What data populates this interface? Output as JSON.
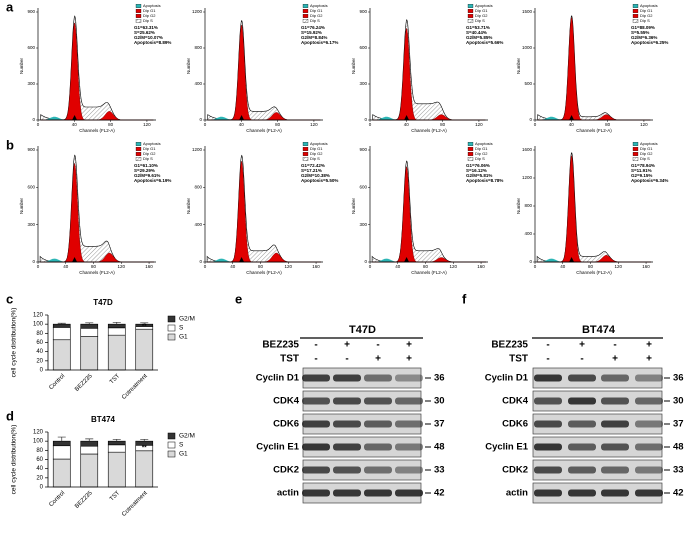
{
  "flow": {
    "xlabel": "Channels (FL2-A)",
    "ylabel": "Number",
    "legend": [
      "Apoptosis",
      "Dip G1",
      "Dip G2",
      "Dip S"
    ],
    "rows": [
      {
        "label": "a",
        "xlim": [
          0,
          130
        ],
        "xticks": [
          0,
          40,
          80,
          120
        ],
        "plots": [
          {
            "stats": [
              "G1=63.31%",
              "S=25.62%",
              "G2/M=10.07%",
              "Apoptosis=8.89%"
            ],
            "ylim": [
              0,
              900
            ],
            "yticks": [
              0,
              300,
              600,
              900
            ]
          },
          {
            "stats": [
              "G1=76.24%",
              "S=15.92%",
              "G2/M=8.84%",
              "Apoptosis=6.17%"
            ],
            "ylim": [
              0,
              1200
            ],
            "yticks": [
              0,
              400,
              800,
              1200
            ]
          },
          {
            "stats": [
              "G1=53.71%",
              "S=40.44%",
              "G2/M=5.85%",
              "Apoptosis=5.66%"
            ],
            "ylim": [
              0,
              900
            ],
            "yticks": [
              0,
              300,
              600,
              900
            ]
          },
          {
            "stats": [
              "G1=88.09%",
              "S=5.55%",
              "G2/M=6.36%",
              "Apoptosis=6.25%"
            ],
            "ylim": [
              0,
              1500
            ],
            "yticks": [
              0,
              500,
              1000,
              1500
            ]
          }
        ]
      },
      {
        "label": "b",
        "xlim": [
          0,
          170
        ],
        "xticks": [
          0,
          40,
          80,
          120,
          160
        ],
        "plots": [
          {
            "stats": [
              "G1=61.10%",
              "S=29.29%",
              "G2/M=9.61%",
              "Apoptosis=6.19%"
            ],
            "ylim": [
              0,
              900
            ],
            "yticks": [
              0,
              300,
              600,
              900
            ]
          },
          {
            "stats": [
              "G1=72.42%",
              "S=17.21%",
              "G2/M=10.38%",
              "Apoptosis=5.50%"
            ],
            "ylim": [
              0,
              1200
            ],
            "yticks": [
              0,
              400,
              800,
              1200
            ]
          },
          {
            "stats": [
              "G1=76.06%",
              "S=16.12%",
              "G2/M=5.81%",
              "Apoptosis=8.78%"
            ],
            "ylim": [
              0,
              900
            ],
            "yticks": [
              0,
              300,
              600,
              900
            ]
          },
          {
            "stats": [
              "G1=78.94%",
              "S=11.91%",
              "G2=9.15%",
              "Apoptosis=6.34%"
            ],
            "ylim": [
              0,
              1600
            ],
            "yticks": [
              0,
              400,
              800,
              1200,
              1600
            ]
          }
        ]
      }
    ]
  },
  "chart_data": [
    {
      "type": "bar",
      "label": "c",
      "title": "T47D",
      "ylabel": "cell cycle distribution(%)",
      "categories": [
        "Control",
        "BEZ235",
        "TST",
        "Cotreatment"
      ],
      "series": [
        {
          "name": "G1",
          "color": "#d9d9d9",
          "values": [
            66,
            73,
            76,
            89
          ],
          "errors": [
            2,
            4,
            8,
            2
          ]
        },
        {
          "name": "S",
          "color": "#ffffff",
          "values": [
            27,
            18,
            16,
            6
          ],
          "errors": [
            2,
            3,
            5,
            2
          ]
        },
        {
          "name": "G2/M",
          "color": "#333333",
          "values": [
            7,
            9,
            8,
            5
          ],
          "errors": [
            2,
            3,
            4,
            3
          ]
        }
      ],
      "annotation": "**",
      "ylim": [
        0,
        120
      ],
      "yticks": [
        0,
        20,
        40,
        60,
        80,
        100,
        120
      ]
    },
    {
      "type": "bar",
      "label": "d",
      "title": "BT474",
      "ylabel": "cell cycle distribution(%)",
      "categories": [
        "Control",
        "BEZ235",
        "TST",
        "Cotreatment"
      ],
      "series": [
        {
          "name": "G1",
          "color": "#d9d9d9",
          "values": [
            61,
            72,
            76,
            79
          ],
          "errors": [
            3,
            5,
            4,
            3
          ]
        },
        {
          "name": "S",
          "color": "#ffffff",
          "values": [
            29,
            17,
            16,
            12
          ],
          "errors": [
            4,
            3,
            4,
            3
          ]
        },
        {
          "name": "G2/M",
          "color": "#333333",
          "values": [
            10,
            11,
            8,
            9
          ],
          "errors": [
            9,
            5,
            4,
            4
          ]
        }
      ],
      "annotation": "**",
      "ylim": [
        0,
        120
      ],
      "yticks": [
        0,
        20,
        40,
        60,
        80,
        100,
        120
      ]
    }
  ],
  "blots": [
    {
      "label": "e",
      "title": "T47D",
      "treatments": [
        {
          "name": "BEZ235",
          "signs": [
            "-",
            "+",
            "-",
            "+"
          ]
        },
        {
          "name": "TST",
          "signs": [
            "-",
            "-",
            "+",
            "+"
          ]
        }
      ],
      "proteins": [
        {
          "name": "Cyclin D1",
          "kda": 36
        },
        {
          "name": "CDK4",
          "kda": 30
        },
        {
          "name": "CDK6",
          "kda": 37
        },
        {
          "name": "Cyclin E1",
          "kda": 48
        },
        {
          "name": "CDK2",
          "kda": 33
        },
        {
          "name": "actin",
          "kda": 42
        }
      ]
    },
    {
      "label": "f",
      "title": "BT474",
      "treatments": [
        {
          "name": "BEZ235",
          "signs": [
            "-",
            "+",
            "-",
            "+"
          ]
        },
        {
          "name": "TST",
          "signs": [
            "-",
            "-",
            "+",
            "+"
          ]
        }
      ],
      "proteins": [
        {
          "name": "Cyclin D1",
          "kda": 36
        },
        {
          "name": "CDK4",
          "kda": 30
        },
        {
          "name": "CDK6",
          "kda": 37
        },
        {
          "name": "Cyclin E1",
          "kda": 48
        },
        {
          "name": "CDK2",
          "kda": 33
        },
        {
          "name": "actin",
          "kda": 42
        }
      ]
    }
  ]
}
